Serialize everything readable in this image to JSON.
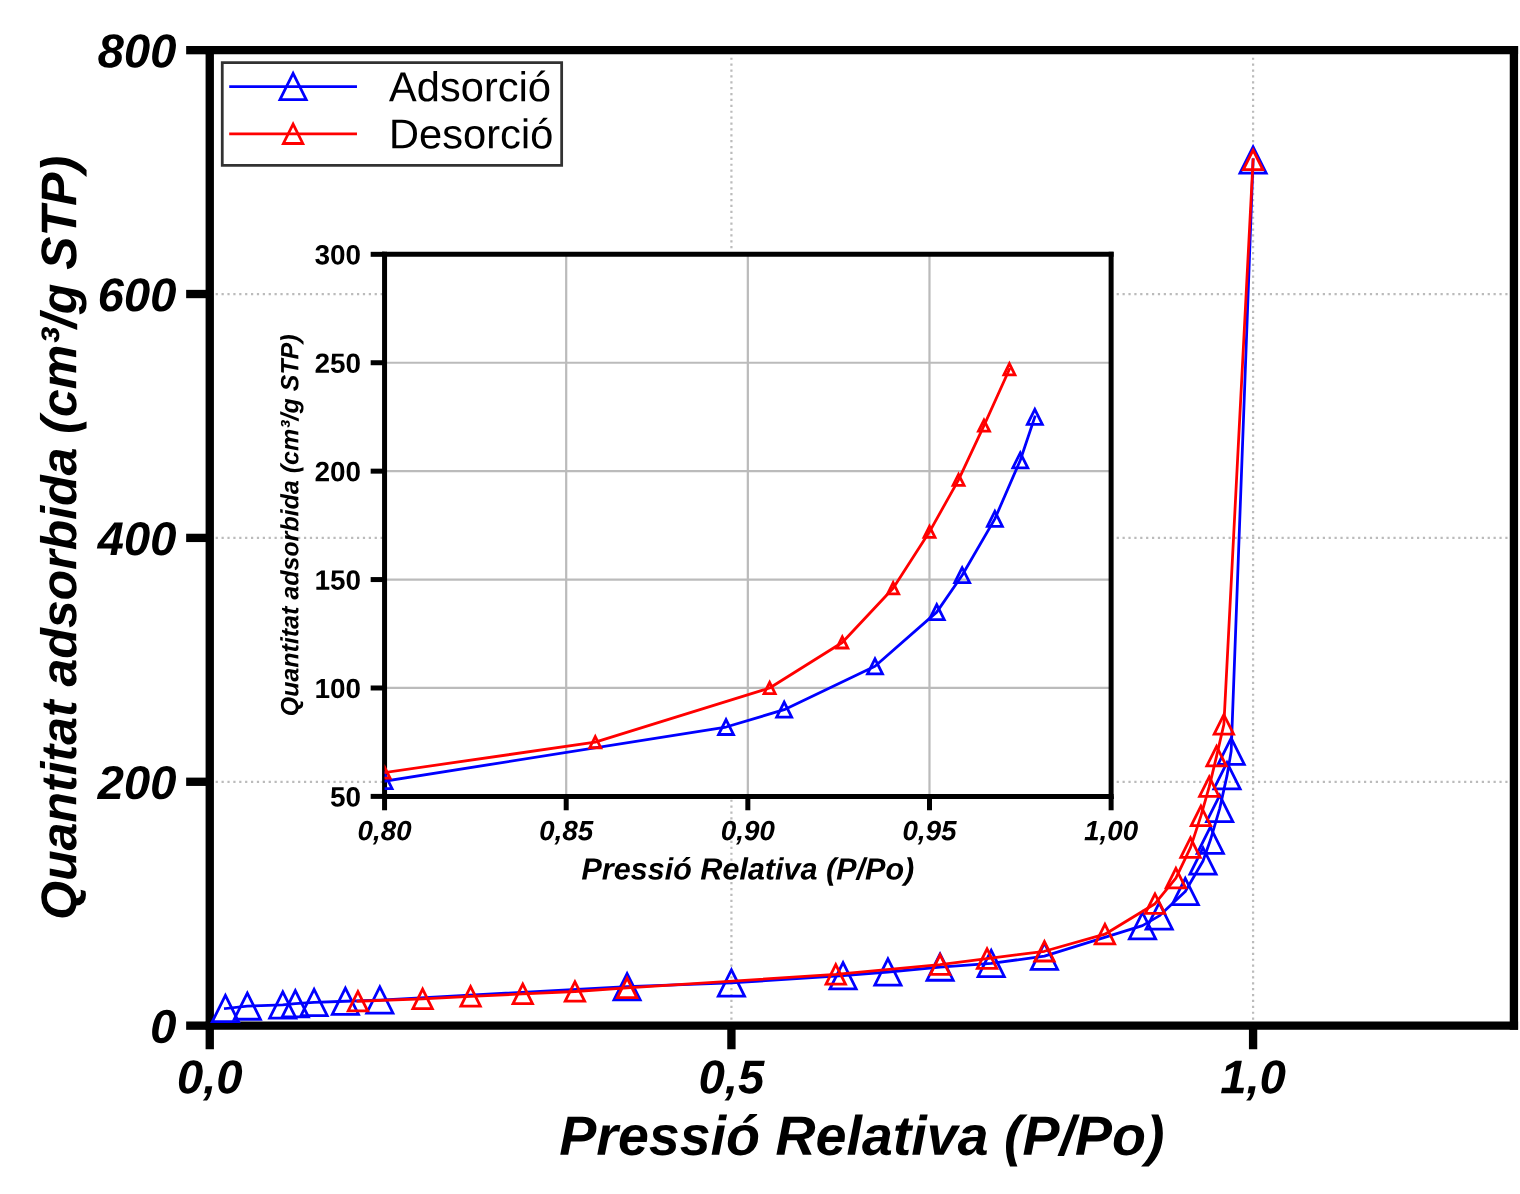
{
  "chart_data": [
    {
      "type": "line",
      "xlabel": "Pressió Relativa (P/Po)",
      "ylabel": "Quantitat adsorbida (cm³/g STP)",
      "xlim": [
        0,
        1.25
      ],
      "ylim": [
        0,
        800
      ],
      "xticks": [
        {
          "value": 0,
          "label": "0,0"
        },
        {
          "value": 0.5,
          "label": "0,5"
        },
        {
          "value": 1.0,
          "label": "1,0"
        }
      ],
      "yticks": [
        0,
        200,
        400,
        600,
        800
      ],
      "grid": true,
      "legend": "top left",
      "marker": "triangle",
      "line_style": "solid",
      "series": [
        {
          "name": "Adsorció",
          "color": "#0000ff",
          "x": [
            0.015,
            0.036,
            0.07,
            0.082,
            0.1,
            0.13,
            0.163,
            0.4,
            0.5,
            0.607,
            0.65,
            0.7,
            0.749,
            0.8,
            0.894,
            0.91,
            0.935,
            0.952,
            0.959,
            0.968,
            0.975,
            0.979,
            1.0
          ],
          "values": [
            14,
            16,
            17,
            18,
            19,
            20,
            21,
            32,
            35,
            41,
            44,
            48,
            51,
            57,
            82,
            90,
            110,
            135,
            152,
            178,
            205,
            225,
            710
          ]
        },
        {
          "name": "Desorció",
          "color": "#ff0000",
          "x": [
            0.142,
            0.204,
            0.25,
            0.3,
            0.35,
            0.4,
            0.6,
            0.7,
            0.745,
            0.8,
            0.858,
            0.906,
            0.926,
            0.94,
            0.95,
            0.958,
            0.965,
            0.972,
            1.0
          ],
          "values": [
            20,
            22,
            24,
            26,
            28,
            31,
            42,
            50,
            55,
            61,
            75,
            100,
            121,
            146,
            172,
            196,
            221,
            247,
            710
          ]
        }
      ]
    },
    {
      "type": "line",
      "xlabel": "Pressió Relativa (P/Po)",
      "ylabel": "Quantitat adsorbida (cm³/g STP)",
      "xlim": [
        0.8,
        1.0
      ],
      "ylim": [
        50,
        300
      ],
      "xticks": [
        {
          "value": 0.8,
          "label": "0,80"
        },
        {
          "value": 0.85,
          "label": "0,85"
        },
        {
          "value": 0.9,
          "label": "0,90"
        },
        {
          "value": 0.95,
          "label": "0,95"
        },
        {
          "value": 1.0,
          "label": "1,00"
        }
      ],
      "yticks": [
        50,
        100,
        150,
        200,
        250,
        300
      ],
      "grid": true,
      "marker": "triangle",
      "line_style": "solid",
      "series": [
        {
          "color": "#0000ff",
          "x": [
            0.8,
            0.894,
            0.91,
            0.935,
            0.952,
            0.959,
            0.968,
            0.975,
            0.979
          ],
          "values": [
            57,
            82,
            90,
            110,
            135,
            152,
            178,
            205,
            225
          ]
        },
        {
          "color": "#ff0000",
          "x": [
            0.8,
            0.858,
            0.906,
            0.926,
            0.94,
            0.95,
            0.958,
            0.965,
            0.972
          ],
          "values": [
            61,
            75,
            100,
            121,
            146,
            172,
            196,
            221,
            247
          ]
        }
      ]
    }
  ]
}
